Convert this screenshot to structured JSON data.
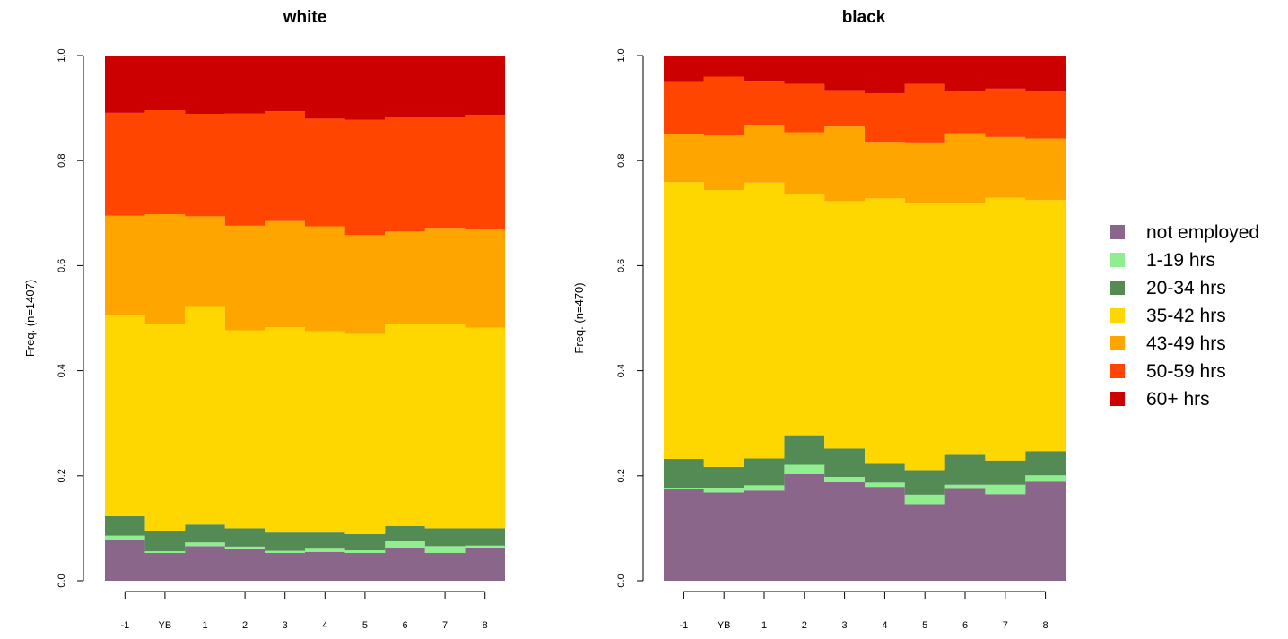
{
  "legend": [
    {
      "label": "not employed",
      "color": "#8B668B"
    },
    {
      "label": "1-19 hrs",
      "color": "#90EE90"
    },
    {
      "label": "20-34 hrs",
      "color": "#548B54"
    },
    {
      "label": "35-42 hrs",
      "color": "#FFD700"
    },
    {
      "label": "43-49 hrs",
      "color": "#FFA500"
    },
    {
      "label": "50-59 hrs",
      "color": "#FF4500"
    },
    {
      "label": "60+ hrs",
      "color": "#CD0000"
    }
  ],
  "chart_data": [
    {
      "type": "area",
      "subtype": "state distribution plot (stacked proportions)",
      "title": "white",
      "ylabel": "Freq. (n=1407)",
      "ylim": [
        0,
        1
      ],
      "yticks": [
        "0.0",
        "0.2",
        "0.4",
        "0.6",
        "0.8",
        "1.0"
      ],
      "categories": [
        "-1",
        "YB",
        "1",
        "2",
        "3",
        "4",
        "5",
        "6",
        "7",
        "8"
      ],
      "series": [
        {
          "name": "not employed",
          "values": [
            0.078,
            0.053,
            0.066,
            0.06,
            0.053,
            0.055,
            0.053,
            0.062,
            0.053,
            0.062
          ]
        },
        {
          "name": "1-19 hrs",
          "values": [
            0.008,
            0.003,
            0.007,
            0.005,
            0.004,
            0.006,
            0.005,
            0.013,
            0.013,
            0.005
          ]
        },
        {
          "name": "20-34 hrs",
          "values": [
            0.037,
            0.039,
            0.034,
            0.035,
            0.035,
            0.031,
            0.031,
            0.029,
            0.034,
            0.033
          ]
        },
        {
          "name": "35-42 hrs",
          "values": [
            0.383,
            0.393,
            0.416,
            0.377,
            0.391,
            0.383,
            0.381,
            0.384,
            0.388,
            0.382
          ]
        },
        {
          "name": "43-49 hrs",
          "values": [
            0.189,
            0.21,
            0.171,
            0.199,
            0.202,
            0.2,
            0.188,
            0.177,
            0.184,
            0.188
          ]
        },
        {
          "name": "50-59 hrs",
          "values": [
            0.196,
            0.198,
            0.195,
            0.214,
            0.209,
            0.205,
            0.22,
            0.219,
            0.211,
            0.217
          ]
        },
        {
          "name": "60+ hrs",
          "values": [
            0.109,
            0.104,
            0.111,
            0.11,
            0.106,
            0.12,
            0.122,
            0.116,
            0.117,
            0.113
          ]
        }
      ]
    },
    {
      "type": "area",
      "subtype": "state distribution plot (stacked proportions)",
      "title": "black",
      "ylabel": "Freq. (n=470)",
      "ylim": [
        0,
        1
      ],
      "yticks": [
        "0.0",
        "0.2",
        "0.4",
        "0.6",
        "0.8",
        "1.0"
      ],
      "categories": [
        "-1",
        "YB",
        "1",
        "2",
        "3",
        "4",
        "5",
        "6",
        "7",
        "8"
      ],
      "series": [
        {
          "name": "not employed",
          "values": [
            0.174,
            0.168,
            0.172,
            0.203,
            0.188,
            0.179,
            0.146,
            0.175,
            0.165,
            0.189
          ]
        },
        {
          "name": "1-19 hrs",
          "values": [
            0.003,
            0.008,
            0.01,
            0.018,
            0.01,
            0.008,
            0.018,
            0.008,
            0.018,
            0.012
          ]
        },
        {
          "name": "20-34 hrs",
          "values": [
            0.055,
            0.041,
            0.051,
            0.056,
            0.054,
            0.036,
            0.047,
            0.057,
            0.046,
            0.046
          ]
        },
        {
          "name": "35-42 hrs",
          "values": [
            0.527,
            0.527,
            0.525,
            0.459,
            0.471,
            0.505,
            0.509,
            0.478,
            0.5,
            0.478
          ]
        },
        {
          "name": "43-49 hrs",
          "values": [
            0.091,
            0.104,
            0.109,
            0.118,
            0.142,
            0.106,
            0.113,
            0.134,
            0.116,
            0.117
          ]
        },
        {
          "name": "50-59 hrs",
          "values": [
            0.101,
            0.112,
            0.085,
            0.092,
            0.069,
            0.094,
            0.113,
            0.081,
            0.092,
            0.091
          ]
        },
        {
          "name": "60+ hrs",
          "values": [
            0.049,
            0.04,
            0.048,
            0.054,
            0.066,
            0.072,
            0.054,
            0.067,
            0.063,
            0.067
          ]
        }
      ]
    }
  ]
}
